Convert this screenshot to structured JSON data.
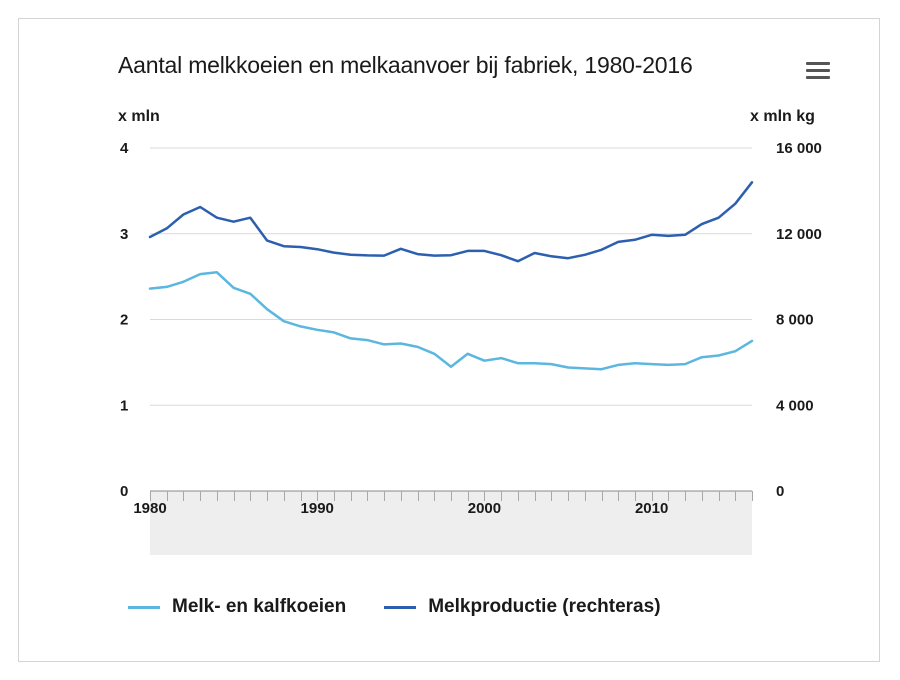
{
  "header": {
    "title": "Aantal melkkoeien en melkaanvoer bij fabriek, 1980-2016",
    "menu_icon": "hamburger-menu-icon"
  },
  "colors": {
    "series_cows": "#5bb7e0",
    "series_milk": "#2c5fae",
    "grid": "#d9d9d9",
    "navigator_band": "#eeeeee"
  },
  "chart_data": {
    "type": "line",
    "title": "Aantal melkkoeien en melkaanvoer bij fabriek, 1980-2016",
    "xlabel": "",
    "ylabel_left": "x mln",
    "ylabel_right": "x mln kg",
    "xlim": [
      1980,
      2016
    ],
    "ylim_left": [
      0,
      4
    ],
    "ylim_right": [
      0,
      16000
    ],
    "x_ticks": [
      1980,
      1990,
      2000,
      2010
    ],
    "x_tick_labels": [
      "1980",
      "1990",
      "2000",
      "2010"
    ],
    "y_left_ticks": [
      0,
      1,
      2,
      3,
      4
    ],
    "y_left_tick_labels": [
      "0",
      "1",
      "2",
      "3",
      "4"
    ],
    "y_right_ticks": [
      0,
      4000,
      8000,
      12000,
      16000
    ],
    "y_right_tick_labels": [
      "0",
      "4 000",
      "8 000",
      "12 000",
      "16 000"
    ],
    "grid": true,
    "legend_position": "bottom",
    "x": [
      1980,
      1981,
      1982,
      1983,
      1984,
      1985,
      1986,
      1987,
      1988,
      1989,
      1990,
      1991,
      1992,
      1993,
      1994,
      1995,
      1996,
      1997,
      1998,
      1999,
      2000,
      2001,
      2002,
      2003,
      2004,
      2005,
      2006,
      2007,
      2008,
      2009,
      2010,
      2011,
      2012,
      2013,
      2014,
      2015,
      2016
    ],
    "series": [
      {
        "name": "Melk- en kalfkoeien",
        "axis": "left",
        "values": [
          2.36,
          2.38,
          2.44,
          2.53,
          2.55,
          2.37,
          2.3,
          2.12,
          1.98,
          1.92,
          1.88,
          1.85,
          1.78,
          1.76,
          1.71,
          1.72,
          1.68,
          1.6,
          1.45,
          1.6,
          1.52,
          1.55,
          1.49,
          1.49,
          1.48,
          1.44,
          1.43,
          1.42,
          1.47,
          1.49,
          1.48,
          1.47,
          1.48,
          1.56,
          1.58,
          1.63,
          1.75
        ]
      },
      {
        "name": "Melkproductie (rechteras)",
        "axis": "right",
        "values": [
          11850,
          12250,
          12900,
          13250,
          12750,
          12560,
          12750,
          11680,
          11420,
          11380,
          11280,
          11120,
          11020,
          10990,
          10980,
          11300,
          11050,
          10980,
          11000,
          11200,
          11200,
          11000,
          10720,
          11100,
          10950,
          10860,
          11020,
          11250,
          11620,
          11720,
          11950,
          11900,
          11950,
          12450,
          12750,
          13400,
          14400
        ]
      }
    ]
  }
}
